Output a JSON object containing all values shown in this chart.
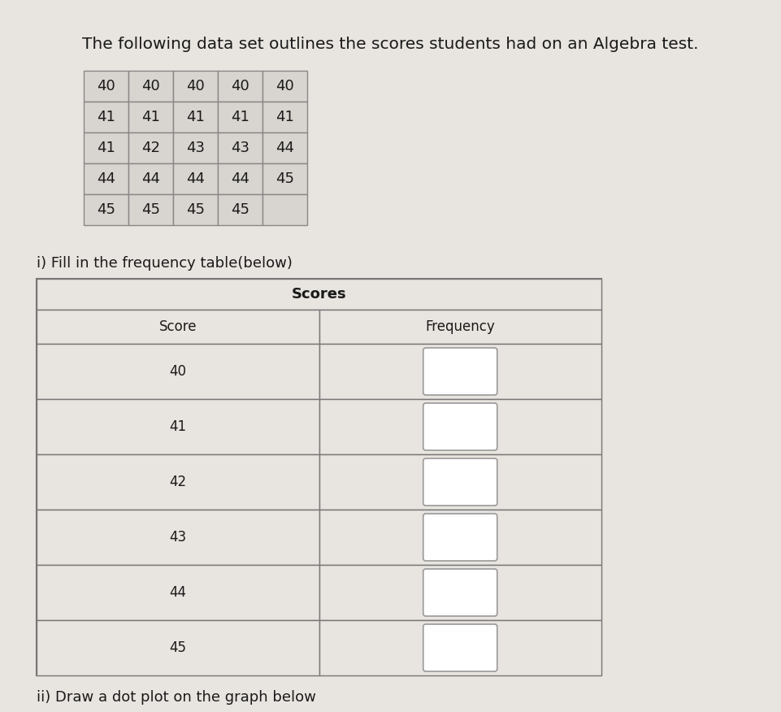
{
  "title": "The following data set outlines the scores students had on an Algebra test.",
  "title_fontsize": 14.5,
  "background_color": "#e8e4df",
  "data_grid": [
    [
      40,
      40,
      40,
      40,
      40
    ],
    [
      41,
      41,
      41,
      41,
      41
    ],
    [
      41,
      42,
      43,
      43,
      44
    ],
    [
      44,
      44,
      44,
      44,
      45
    ],
    [
      45,
      45,
      45,
      45,
      null
    ]
  ],
  "grid_cell_color": "#d8d4cf",
  "grid_border_color": "#888888",
  "subtitle": "i) Fill in the frequency table(below)",
  "subtitle_fontsize": 13,
  "freq_table_title": "Scores",
  "freq_col1_header": "Score",
  "freq_col2_header": "Frequency",
  "freq_scores": [
    40,
    41,
    42,
    43,
    44,
    45
  ],
  "footer_text": "ii) Draw a dot plot on the graph below",
  "text_color": "#1a1a1a",
  "table_border_color": "#777777",
  "freq_box_color": "#ffffff",
  "freq_box_border": "#999999",
  "cell_bg_color": "#e8e4df",
  "freq_table_data_fontsize": 12,
  "freq_table_header_fontsize": 13
}
